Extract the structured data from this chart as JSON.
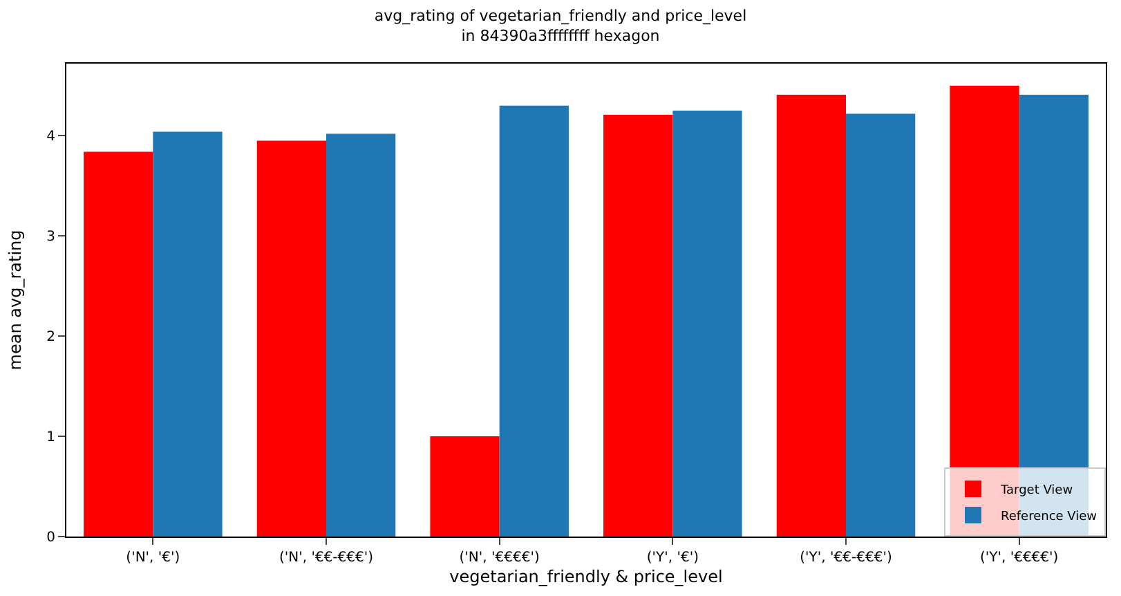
{
  "chart_data": {
    "type": "bar",
    "title": "avg_rating of vegetarian_friendly and price_level\nin 84390a3ffffffff hexagon",
    "xlabel": "vegetarian_friendly & price_level",
    "ylabel": "mean avg_rating",
    "categories": [
      "('N', '€')",
      "('N', '€€-€€€')",
      "('N', '€€€€')",
      "('Y', '€')",
      "('Y', '€€-€€€')",
      "('Y', '€€€€')"
    ],
    "series": [
      {
        "name": "Target View",
        "color": "#ff0000",
        "values": [
          3.84,
          3.95,
          1.0,
          4.21,
          4.41,
          4.5
        ]
      },
      {
        "name": "Reference View",
        "color": "#1f77b4",
        "values": [
          4.04,
          4.02,
          4.3,
          4.25,
          4.22,
          4.41
        ]
      }
    ],
    "ylim": [
      0,
      4.72
    ],
    "yticks": [
      0,
      1,
      2,
      3,
      4
    ],
    "legend": "bottom right",
    "grid": false
  }
}
